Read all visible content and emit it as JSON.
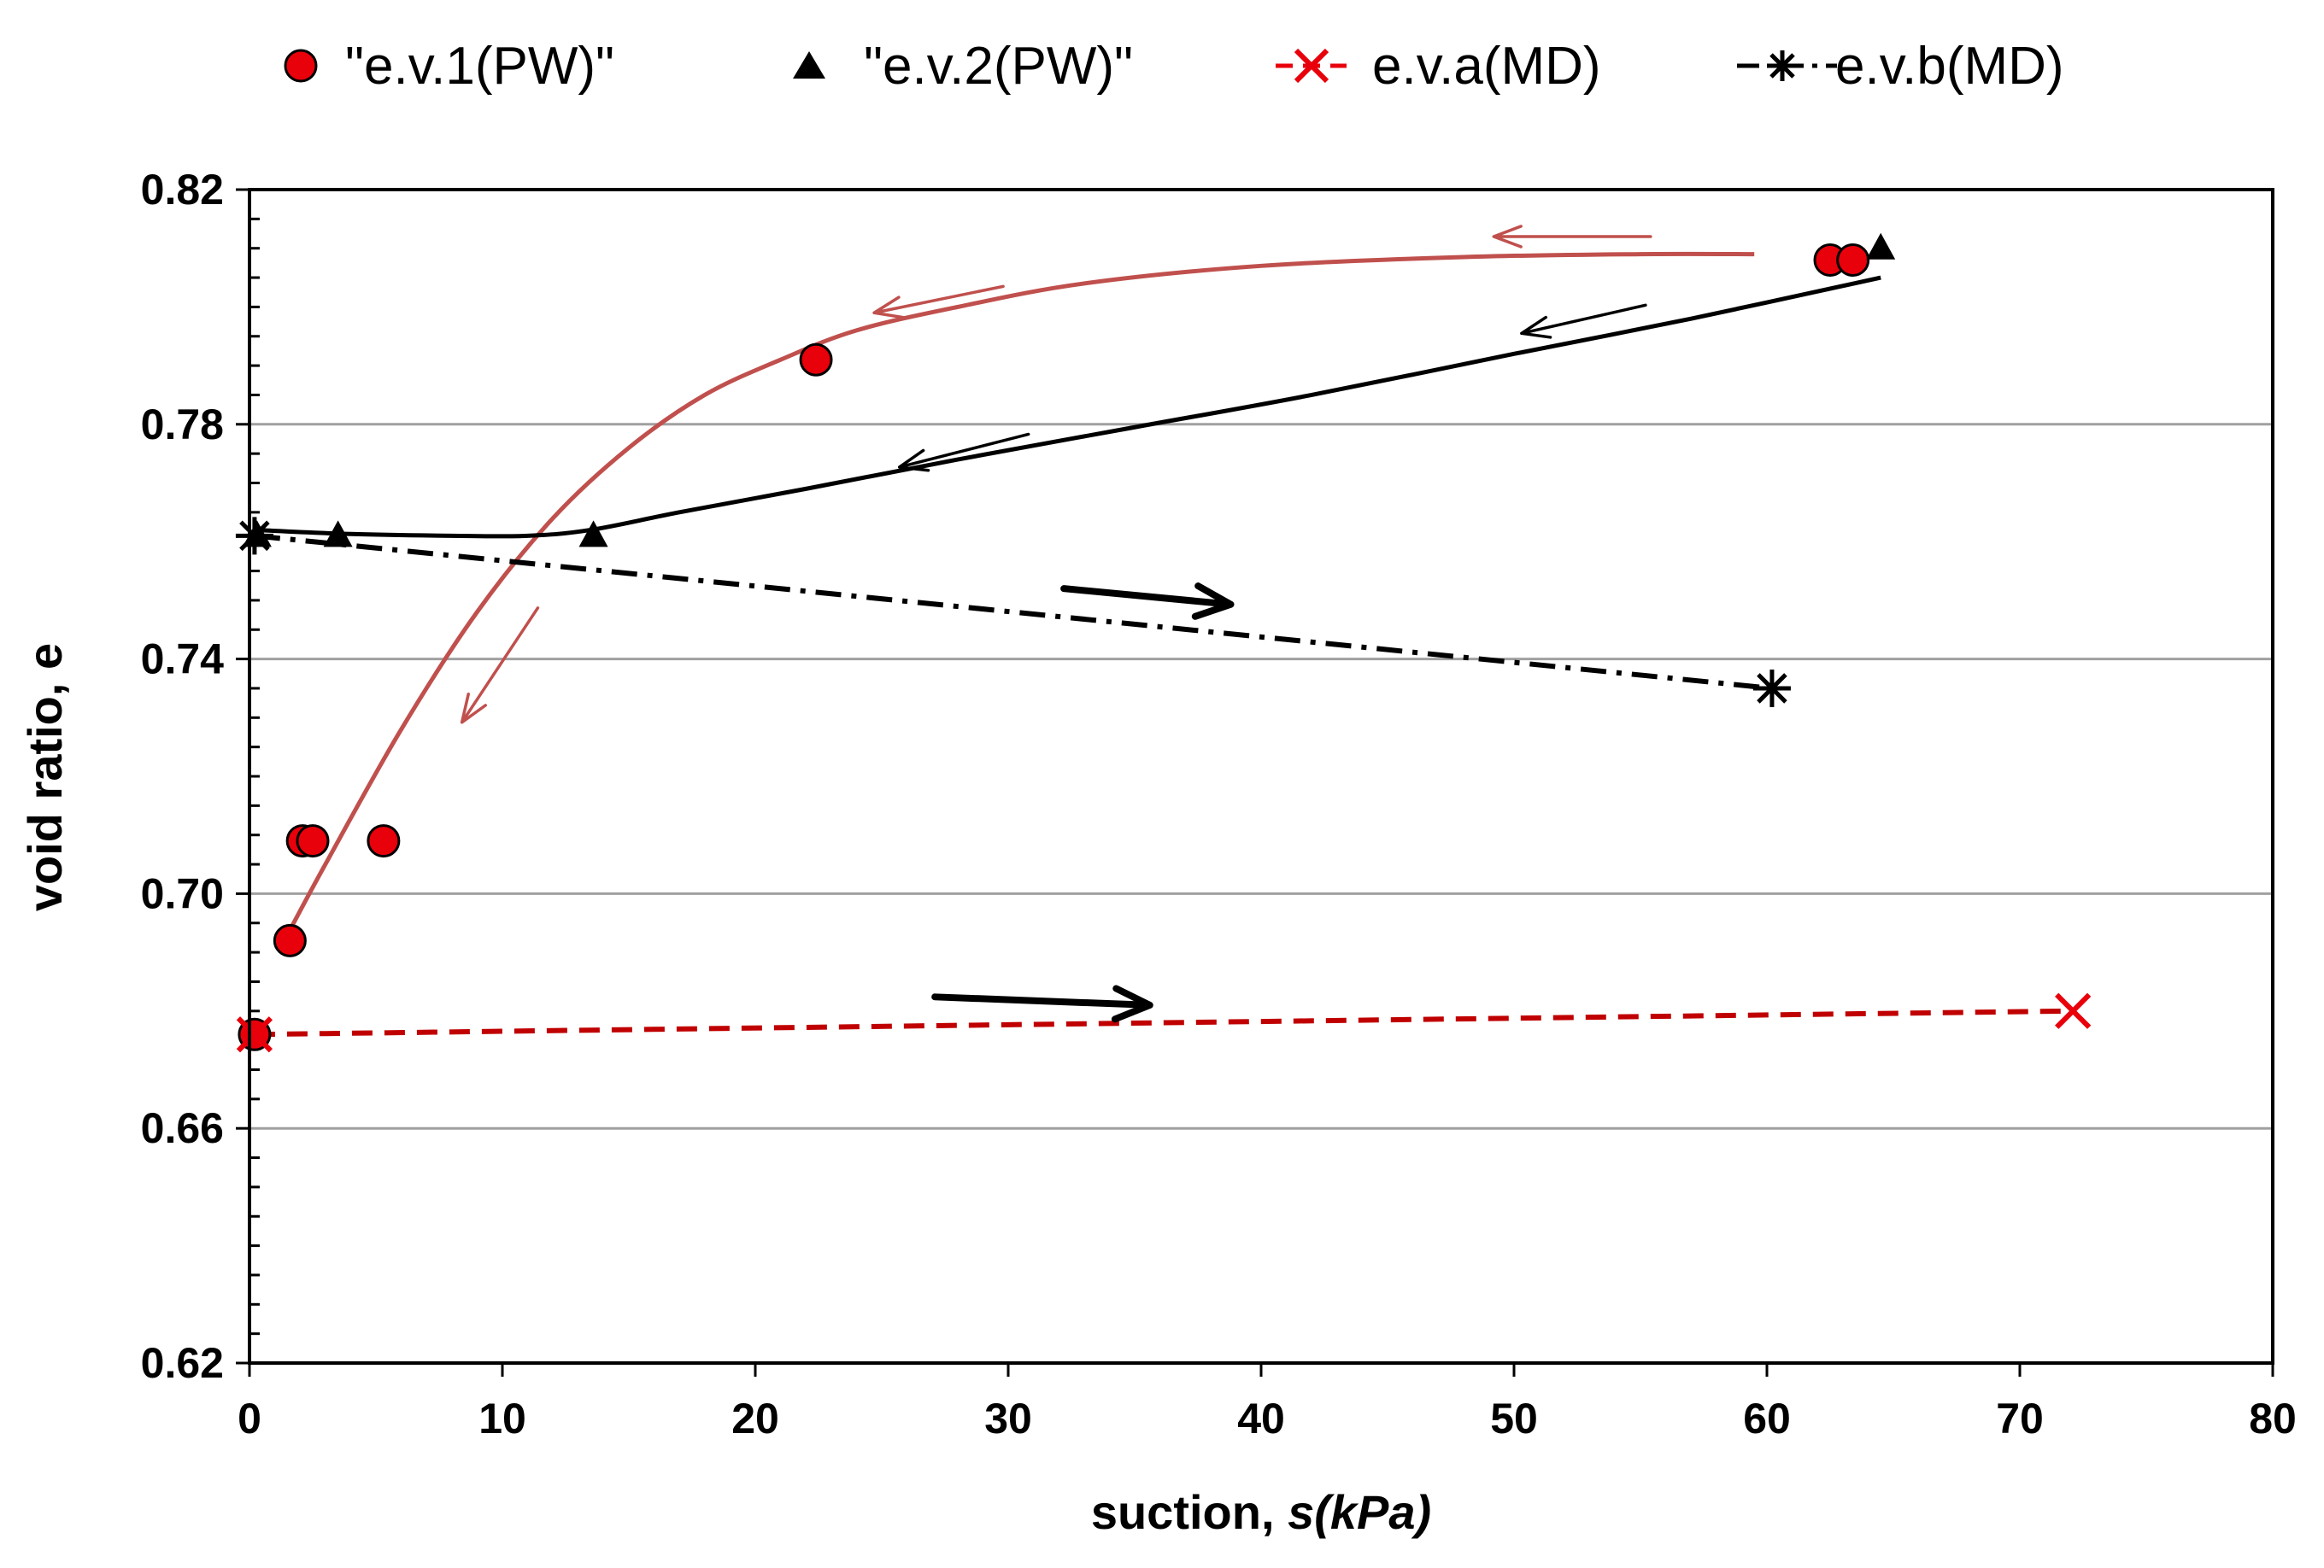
{
  "chart_data": {
    "type": "scatter",
    "title": "",
    "xlabel_prefix": "suction, ",
    "xlabel_var": "s(kPa)",
    "ylabel": "void ratio, e",
    "xlim": [
      0,
      80
    ],
    "ylim": [
      0.62,
      0.82
    ],
    "x_ticks": [
      0,
      10,
      20,
      30,
      40,
      50,
      60,
      70,
      80
    ],
    "x_tick_labels": [
      "0",
      "10",
      "20",
      "30",
      "40",
      "50",
      "60",
      "70",
      "80"
    ],
    "y_ticks": [
      0.62,
      0.66,
      0.7,
      0.74,
      0.78,
      0.82
    ],
    "y_tick_labels": [
      "0.62",
      "0.66",
      "0.70",
      "0.74",
      "0.78",
      "0.82"
    ],
    "y_minor_step": 0.005,
    "gridlines": "horizontal",
    "legend_position": "top",
    "colors": {
      "red": "#e8000b",
      "red_dark": "#c00000",
      "curve_red": "#c0504d",
      "black": "#000000",
      "grid": "#a0a0a0"
    },
    "series": [
      {
        "name": "\"e.v.1(PW)\"",
        "marker": "circle",
        "color": "#e8000b",
        "points": [
          [
            0.2,
            0.676
          ],
          [
            1.6,
            0.692
          ],
          [
            2.1,
            0.709
          ],
          [
            2.5,
            0.709
          ],
          [
            5.3,
            0.709
          ],
          [
            22.4,
            0.791
          ],
          [
            62.5,
            0.808
          ],
          [
            63.4,
            0.808
          ]
        ]
      },
      {
        "name": "\"e.v.2(PW)\"",
        "marker": "triangle",
        "color": "#000000",
        "points": [
          [
            0.3,
            0.761
          ],
          [
            3.5,
            0.761
          ],
          [
            13.6,
            0.761
          ],
          [
            64.5,
            0.81
          ]
        ]
      },
      {
        "name": "e.v.a(MD)",
        "marker": "x",
        "color": "#e8000b",
        "line": "dashed",
        "points": [
          [
            0.2,
            0.676
          ],
          [
            72.1,
            0.68
          ]
        ]
      },
      {
        "name": "e.v.b(MD)",
        "marker": "asterisk",
        "color": "#000000",
        "line": "dash-dot",
        "points": [
          [
            0.2,
            0.761
          ],
          [
            60.2,
            0.735
          ]
        ]
      }
    ],
    "fit_curves": [
      {
        "name": "drying-curve-ev1",
        "color": "#c0504d",
        "points": [
          [
            1.5,
            0.693
          ],
          [
            3,
            0.705
          ],
          [
            6,
            0.728
          ],
          [
            9,
            0.748
          ],
          [
            12,
            0.764
          ],
          [
            15,
            0.776
          ],
          [
            18,
            0.785
          ],
          [
            21,
            0.791
          ],
          [
            24,
            0.796
          ],
          [
            28,
            0.8
          ],
          [
            33,
            0.804
          ],
          [
            40,
            0.807
          ],
          [
            48,
            0.8085
          ],
          [
            55,
            0.809
          ],
          [
            59.5,
            0.809
          ]
        ]
      },
      {
        "name": "drying-curve-ev2",
        "color": "#000000",
        "points": [
          [
            0.2,
            0.762
          ],
          [
            4,
            0.7613
          ],
          [
            8,
            0.761
          ],
          [
            11,
            0.761
          ],
          [
            13.5,
            0.762
          ],
          [
            17,
            0.765
          ],
          [
            22,
            0.769
          ],
          [
            28,
            0.774
          ],
          [
            35,
            0.7795
          ],
          [
            42,
            0.785
          ],
          [
            50,
            0.792
          ],
          [
            57,
            0.798
          ],
          [
            64.5,
            0.805
          ]
        ]
      }
    ],
    "arrows": [
      {
        "name": "arrow-ev1-top",
        "color": "#c0504d",
        "weight": "thin",
        "from": [
          55.4,
          0.812
        ],
        "to": [
          49.2,
          0.812
        ]
      },
      {
        "name": "arrow-ev1-upper-mid",
        "color": "#c0504d",
        "weight": "thin",
        "from": [
          29.8,
          0.8035
        ],
        "to": [
          24.7,
          0.799
        ]
      },
      {
        "name": "arrow-ev1-lower",
        "color": "#c0504d",
        "weight": "thin",
        "from": [
          11.4,
          0.7487
        ],
        "to": [
          8.4,
          0.7292
        ]
      },
      {
        "name": "arrow-ev2-upper",
        "color": "#000000",
        "weight": "thin",
        "from": [
          55.2,
          0.8003
        ],
        "to": [
          50.3,
          0.7955
        ]
      },
      {
        "name": "arrow-ev2-lower",
        "color": "#000000",
        "weight": "thin",
        "from": [
          30.8,
          0.7783
        ],
        "to": [
          25.7,
          0.7727
        ]
      },
      {
        "name": "arrow-evb-wetting",
        "color": "#000000",
        "weight": "bold",
        "from": [
          32.2,
          0.752
        ],
        "to": [
          38.8,
          0.7493
        ]
      },
      {
        "name": "arrow-eva-wetting",
        "color": "#000000",
        "weight": "bold",
        "from": [
          27.1,
          0.6824
        ],
        "to": [
          35.6,
          0.681
        ]
      }
    ]
  }
}
